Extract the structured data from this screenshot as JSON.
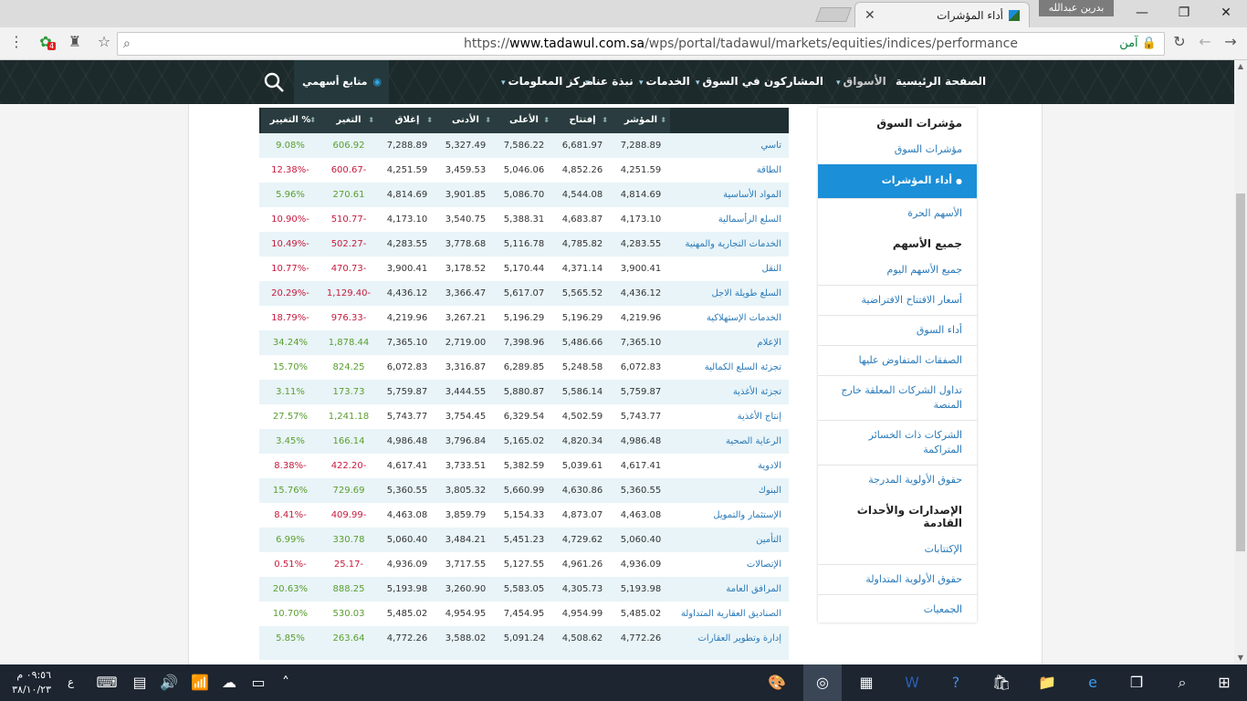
{
  "browser": {
    "tab_title": "أداء المؤشرات",
    "tab_close": "✕",
    "profile_name": "بدرين عبدالله",
    "url_prefix": "https://",
    "url_host": "www.tadawul.com.sa",
    "url_path": "/wps/portal/tadawul/markets/equities/indices/performance",
    "secure_label": "آمن",
    "extension_badge": "4"
  },
  "nav": {
    "items": [
      {
        "label": "الصفحة الرئيسية",
        "caret": ""
      },
      {
        "label": "الأسواق",
        "caret": "▾"
      },
      {
        "label": "المشاركون في السوق",
        "caret": "▾"
      },
      {
        "label": "الخدمات",
        "caret": "▾"
      },
      {
        "label": "نبذة عنا",
        "caret": "▾"
      },
      {
        "label": "مركز المعلومات",
        "caret": "▾"
      }
    ],
    "watch_label": "متابع أسهمي"
  },
  "table": {
    "headers": [
      "المؤشر",
      "إفتتاح",
      "الأعلى",
      "الأدنى",
      "إغلاق",
      "التغير",
      "% التغيير"
    ],
    "rows": [
      {
        "name": "تاسي",
        "index": "7,288.89",
        "open": "6,681.97",
        "high": "7,586.22",
        "low": "5,327.49",
        "close": "7,288.89",
        "change": "606.92",
        "pct": "9.08%",
        "dir": "up"
      },
      {
        "name": "الطاقة",
        "index": "4,251.59",
        "open": "4,852.26",
        "high": "5,046.06",
        "low": "3,459.53",
        "close": "4,251.59",
        "change": "-600.67",
        "pct": "-12.38%",
        "dir": "down"
      },
      {
        "name": "المواد الأساسية",
        "index": "4,814.69",
        "open": "4,544.08",
        "high": "5,086.70",
        "low": "3,901.85",
        "close": "4,814.69",
        "change": "270.61",
        "pct": "5.96%",
        "dir": "up"
      },
      {
        "name": "السلع الرأسمالية",
        "index": "4,173.10",
        "open": "4,683.87",
        "high": "5,388.31",
        "low": "3,540.75",
        "close": "4,173.10",
        "change": "-510.77",
        "pct": "-10.90%",
        "dir": "down"
      },
      {
        "name": "الخدمات التجارية والمهنية",
        "index": "4,283.55",
        "open": "4,785.82",
        "high": "5,116.78",
        "low": "3,778.68",
        "close": "4,283.55",
        "change": "-502.27",
        "pct": "-10.49%",
        "dir": "down"
      },
      {
        "name": "النقل",
        "index": "3,900.41",
        "open": "4,371.14",
        "high": "5,170.44",
        "low": "3,178.52",
        "close": "3,900.41",
        "change": "-470.73",
        "pct": "-10.77%",
        "dir": "down"
      },
      {
        "name": "السلع طويلة الاجل",
        "index": "4,436.12",
        "open": "5,565.52",
        "high": "5,617.07",
        "low": "3,366.47",
        "close": "4,436.12",
        "change": "-1,129.40",
        "pct": "-20.29%",
        "dir": "down"
      },
      {
        "name": "الخدمات الإستهلاكية",
        "index": "4,219.96",
        "open": "5,196.29",
        "high": "5,196.29",
        "low": "3,267.21",
        "close": "4,219.96",
        "change": "-976.33",
        "pct": "-18.79%",
        "dir": "down"
      },
      {
        "name": "الإعلام",
        "index": "7,365.10",
        "open": "5,486.66",
        "high": "7,398.96",
        "low": "2,719.00",
        "close": "7,365.10",
        "change": "1,878.44",
        "pct": "34.24%",
        "dir": "up"
      },
      {
        "name": "تجزئة السلع الكمالية",
        "index": "6,072.83",
        "open": "5,248.58",
        "high": "6,289.85",
        "low": "3,316.87",
        "close": "6,072.83",
        "change": "824.25",
        "pct": "15.70%",
        "dir": "up"
      },
      {
        "name": "تجزئة الأغذية",
        "index": "5,759.87",
        "open": "5,586.14",
        "high": "5,880.87",
        "low": "3,444.55",
        "close": "5,759.87",
        "change": "173.73",
        "pct": "3.11%",
        "dir": "up"
      },
      {
        "name": "إنتاج الأغذية",
        "index": "5,743.77",
        "open": "4,502.59",
        "high": "6,329.54",
        "low": "3,754.45",
        "close": "5,743.77",
        "change": "1,241.18",
        "pct": "27.57%",
        "dir": "up"
      },
      {
        "name": "الرعاية الصحية",
        "index": "4,986.48",
        "open": "4,820.34",
        "high": "5,165.02",
        "low": "3,796.84",
        "close": "4,986.48",
        "change": "166.14",
        "pct": "3.45%",
        "dir": "up"
      },
      {
        "name": "الادوية",
        "index": "4,617.41",
        "open": "5,039.61",
        "high": "5,382.59",
        "low": "3,733.51",
        "close": "4,617.41",
        "change": "-422.20",
        "pct": "-8.38%",
        "dir": "down"
      },
      {
        "name": "البنوك",
        "index": "5,360.55",
        "open": "4,630.86",
        "high": "5,660.99",
        "low": "3,805.32",
        "close": "5,360.55",
        "change": "729.69",
        "pct": "15.76%",
        "dir": "up"
      },
      {
        "name": "الإستثمار والتمويل",
        "index": "4,463.08",
        "open": "4,873.07",
        "high": "5,154.33",
        "low": "3,859.79",
        "close": "4,463.08",
        "change": "-409.99",
        "pct": "-8.41%",
        "dir": "down"
      },
      {
        "name": "التأمين",
        "index": "5,060.40",
        "open": "4,729.62",
        "high": "5,451.23",
        "low": "3,484.21",
        "close": "5,060.40",
        "change": "330.78",
        "pct": "6.99%",
        "dir": "up"
      },
      {
        "name": "الإتصالات",
        "index": "4,936.09",
        "open": "4,961.26",
        "high": "5,127.55",
        "low": "3,717.55",
        "close": "4,936.09",
        "change": "-25.17",
        "pct": "-0.51%",
        "dir": "down"
      },
      {
        "name": "المرافق العامة",
        "index": "5,193.98",
        "open": "4,305.73",
        "high": "5,583.05",
        "low": "3,260.90",
        "close": "5,193.98",
        "change": "888.25",
        "pct": "20.63%",
        "dir": "up"
      },
      {
        "name": "الصناديق العقارية المتداولة",
        "index": "5,485.02",
        "open": "4,954.99",
        "high": "7,454.95",
        "low": "4,954.95",
        "close": "5,485.02",
        "change": "530.03",
        "pct": "10.70%",
        "dir": "up"
      },
      {
        "name": "إدارة وتطوير العقارات",
        "index": "4,772.26",
        "open": "4,508.62",
        "high": "5,091.24",
        "low": "3,588.02",
        "close": "4,772.26",
        "change": "263.64",
        "pct": "5.85%",
        "dir": "up"
      }
    ]
  },
  "sidebar": {
    "sections": [
      {
        "heading": "مؤشرات السوق",
        "links": [
          {
            "label": "مؤشرات السوق",
            "active": false
          },
          {
            "label": "أداء المؤشرات",
            "active": true
          },
          {
            "label": "الأسهم الحرة",
            "active": false
          }
        ]
      },
      {
        "heading": "جميع الأسهم",
        "links": [
          {
            "label": "جميع الأسهم اليوم",
            "active": false
          },
          {
            "label": "أسعار الافتتاح الافتراضية",
            "active": false
          },
          {
            "label": "أداء السوق",
            "active": false
          },
          {
            "label": "الصفقات المتفاوض عليها",
            "active": false
          },
          {
            "label": "تداول الشركات المعلقة خارج المنصة",
            "active": false
          },
          {
            "label": "الشركات ذات الخسائر المتراكمة",
            "active": false
          },
          {
            "label": "حقوق الأولوية المدرجة",
            "active": false
          }
        ]
      },
      {
        "heading": "الإصدارات والأحداث القادمة",
        "links": [
          {
            "label": "الإكتتابات",
            "active": false
          },
          {
            "label": "حقوق الأولوية المتداولة",
            "active": false
          },
          {
            "label": "الجمعيات",
            "active": false
          }
        ]
      }
    ]
  },
  "taskbar": {
    "time": "٠٩:٥٦ م",
    "date": "٣٨/١٠/٢٣",
    "lang": "ع"
  },
  "colors": {
    "up": "#5a9e2f",
    "down": "#c71a3d",
    "accent": "#1b8fd8",
    "nav_bg": "#1d2a2b"
  }
}
